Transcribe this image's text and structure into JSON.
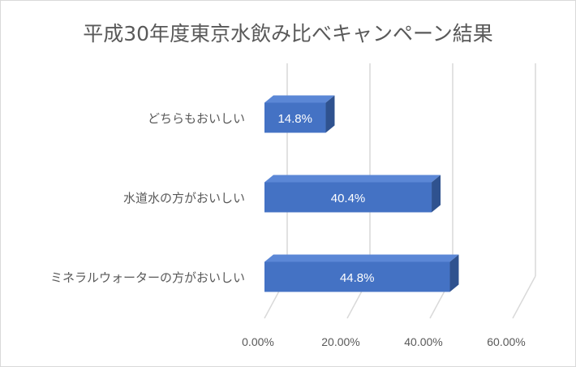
{
  "chart_data": {
    "type": "bar",
    "orientation": "horizontal",
    "style": "3d",
    "title": "平成30年度東京水飲み比べキャンペーン結果",
    "categories": [
      "どちらもおいしい",
      "水道水の方がおいしい",
      "ミネラルウォーターの方がおいしい"
    ],
    "values": [
      14.8,
      40.4,
      44.8
    ],
    "data_labels": [
      "14.8%",
      "40.4%",
      "44.8%"
    ],
    "x_ticks": [
      "0.00%",
      "20.00%",
      "40.00%",
      "60.00%"
    ],
    "xlim": [
      0,
      60
    ],
    "grid": true,
    "legend": "none",
    "colors": {
      "bar_front": "#4472C4",
      "bar_top": "#5B87D6",
      "bar_side": "#2F528F"
    }
  }
}
